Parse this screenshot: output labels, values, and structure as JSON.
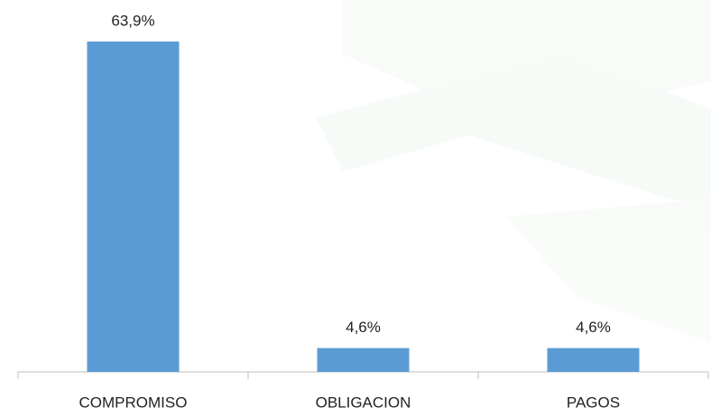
{
  "chart_data": {
    "type": "bar",
    "categories": [
      "COMPROMISO",
      "OBLIGACION",
      "PAGOS"
    ],
    "values": [
      63.9,
      4.6,
      4.6
    ],
    "value_labels": [
      "63,9%",
      "4,6%",
      "4,6%"
    ],
    "color": "#5b9bd5"
  }
}
